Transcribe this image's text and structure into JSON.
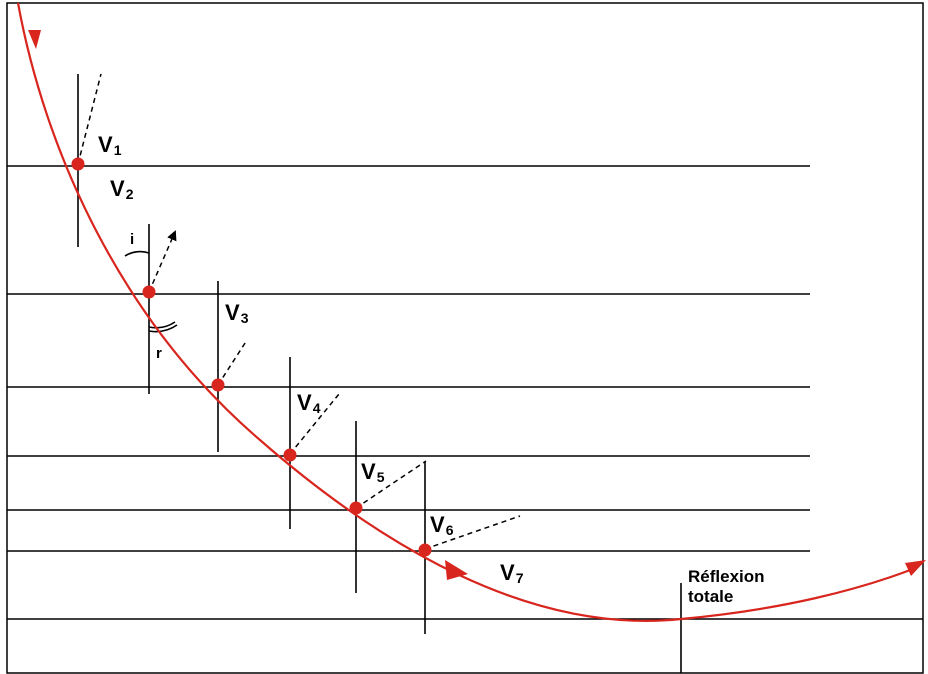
{
  "colors": {
    "ray": "#d8261e",
    "lines": "#000000",
    "frame": "#000000"
  },
  "velocity_labels": [
    {
      "main": "V",
      "sub": "1"
    },
    {
      "main": "V",
      "sub": "2"
    },
    {
      "main": "V",
      "sub": "3"
    },
    {
      "main": "V",
      "sub": "4"
    },
    {
      "main": "V",
      "sub": "5"
    },
    {
      "main": "V",
      "sub": "6"
    },
    {
      "main": "V",
      "sub": "7"
    }
  ],
  "angle_labels": {
    "incidence": "i",
    "refraction": "r"
  },
  "reflection_label": {
    "line1": "Réflexion",
    "line2": "totale"
  }
}
